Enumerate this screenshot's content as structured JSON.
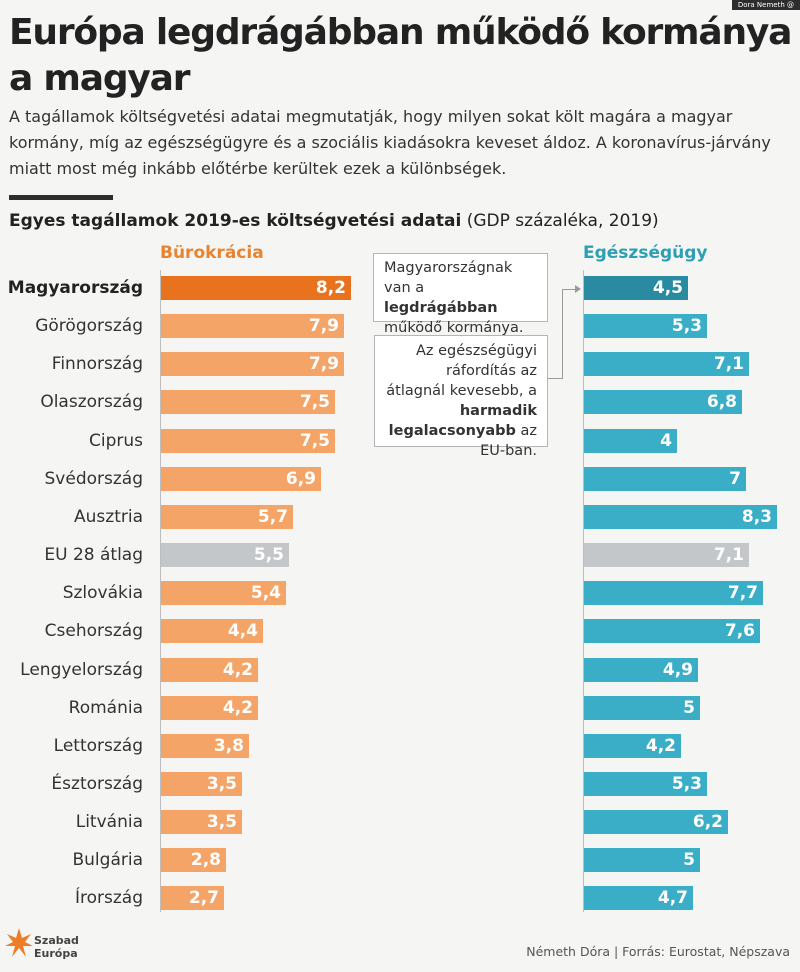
{
  "credit": "Dora Nemeth @",
  "title": "Európa legdrágábban működő kormánya a magyar",
  "subtitle": "A tagállamok költségvetési adatai megmutatják, hogy milyen sokat költ magára a magyar kormány, míg az egészségügyre és a szociális kiadásokra keveset áldoz. A koronavírus-járvány miatt most még inkább előtérbe kerültek ezek a különbségek.",
  "section_title_bold": "Egyes tagállamok 2019-es költségvetési adatai",
  "section_title_rest": " (GDP százaléka, 2019)",
  "note1": {
    "pre": "Magyarországnak van a ",
    "bold": "legdrágábban",
    "post": " működő kormánya."
  },
  "note2": {
    "pre": "Az egészségügyi ráfordítás az átlagnál kevesebb, a ",
    "bold": "harmadik legalacsonyabb",
    "post": " az EU-ban."
  },
  "logo": {
    "line1": "Szabad",
    "line2": "Európa"
  },
  "source": "Németh Dóra | Forrás: Eurostat, Népszava",
  "colors": {
    "bureaucracy": "#f4a467",
    "bureaucracy_highlight": "#e8721d",
    "health": "#3aaec7",
    "health_highlight": "#2a8aa2",
    "average": "#c4c7c9"
  },
  "chart_data": {
    "type": "bar",
    "orientation": "horizontal",
    "categories": [
      "Magyarország",
      "Görögország",
      "Finnország",
      "Olaszország",
      "Ciprus",
      "Svédország",
      "Ausztria",
      "EU 28 átlag",
      "Szlovákia",
      "Csehország",
      "Lengyelország",
      "Románia",
      "Lettország",
      "Észtország",
      "Litvánia",
      "Bulgária",
      "Írország"
    ],
    "series": [
      {
        "name": "Bürokrácia",
        "values": [
          8.2,
          7.9,
          7.9,
          7.5,
          7.5,
          6.9,
          5.7,
          5.5,
          5.4,
          4.4,
          4.2,
          4.2,
          3.8,
          3.5,
          3.5,
          2.8,
          2.7
        ]
      },
      {
        "name": "Egészségügy",
        "values": [
          4.5,
          5.3,
          7.1,
          6.8,
          4,
          7,
          8.3,
          7.1,
          7.7,
          7.6,
          4.9,
          5,
          4.2,
          5.3,
          6.2,
          5,
          4.7
        ]
      }
    ],
    "value_labels": [
      [
        "8,2",
        "7,9",
        "7,9",
        "7,5",
        "7,5",
        "6,9",
        "5,7",
        "5,5",
        "5,4",
        "4,4",
        "4,2",
        "4,2",
        "3,8",
        "3,5",
        "3,5",
        "2,8",
        "2,7"
      ],
      [
        "4,5",
        "5,3",
        "7,1",
        "6,8",
        "4",
        "7",
        "8,3",
        "7,1",
        "7,7",
        "7,6",
        "4,9",
        "5",
        "4,2",
        "5,3",
        "6,2",
        "5",
        "4,7"
      ]
    ],
    "highlight_category": "Magyarország",
    "average_category": "EU 28 átlag",
    "unit": "GDP százaléka",
    "grid": false,
    "legend": "column headers"
  }
}
